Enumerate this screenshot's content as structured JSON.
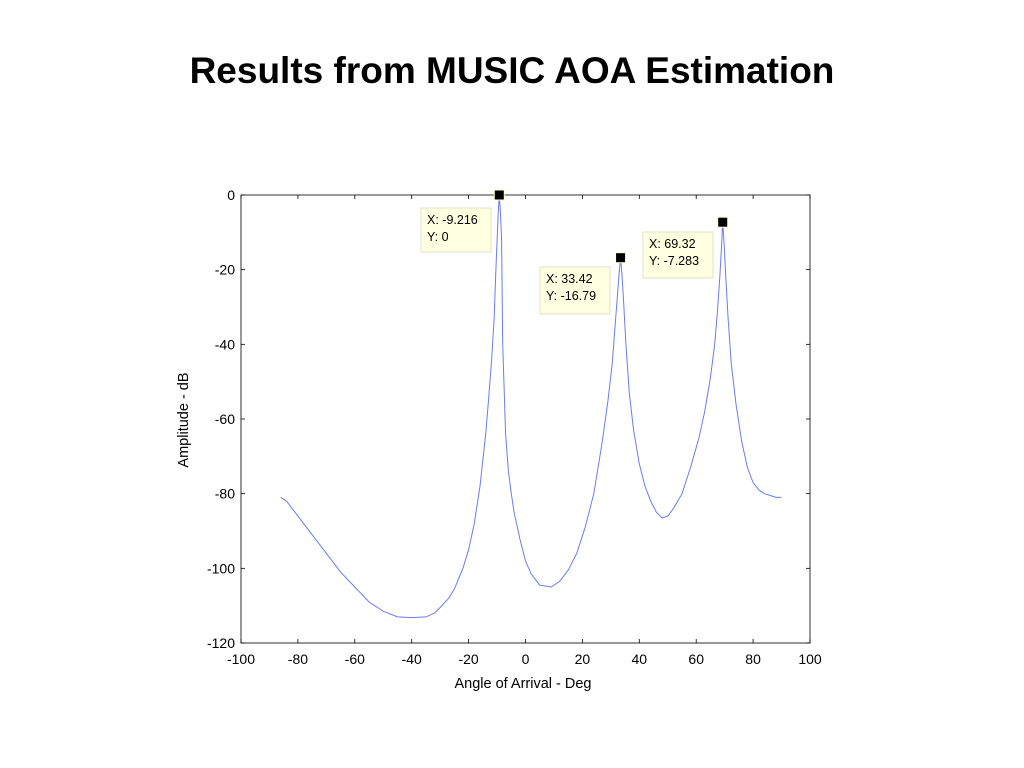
{
  "slide": {
    "title": "Results from MUSIC AOA Estimation"
  },
  "chart_data": {
    "type": "line",
    "title": "",
    "xlabel": "Angle of Arrival - Deg",
    "ylabel": "Amplitude - dB",
    "xlim": [
      -100,
      100
    ],
    "ylim": [
      -120,
      0
    ],
    "xticks": [
      -100,
      -80,
      -60,
      -40,
      -20,
      0,
      20,
      40,
      60,
      80,
      100
    ],
    "yticks": [
      0,
      -20,
      -40,
      -60,
      -80,
      -100,
      -120
    ],
    "grid": false,
    "legend": "none",
    "series": [
      {
        "color": "#6b7cf0",
        "x": [
          -86,
          -84,
          -82,
          -80,
          -75,
          -70,
          -65,
          -60,
          -55,
          -50,
          -45,
          -40,
          -35,
          -32,
          -30,
          -27,
          -25,
          -22,
          -20,
          -18,
          -16,
          -14,
          -13,
          -12,
          -11,
          -10.5,
          -10,
          -9.6,
          -9.216,
          -8.8,
          -8.4,
          -8,
          -7,
          -6,
          -5,
          -4,
          -2,
          0,
          2,
          5,
          9,
          12,
          15,
          18,
          21,
          24,
          27,
          29,
          30.5,
          31.5,
          32.3,
          32.9,
          33.42,
          33.9,
          34.5,
          35.3,
          36.5,
          38,
          40,
          42,
          44,
          46,
          48,
          50,
          52,
          55,
          58,
          61,
          63,
          65,
          66.5,
          67.5,
          68.3,
          68.9,
          69.32,
          69.8,
          70.4,
          71.2,
          72.3,
          74,
          76,
          78,
          80,
          82,
          84,
          86,
          88,
          90
        ],
        "y": [
          -81,
          -82,
          -84,
          -86,
          -91,
          -96,
          -101,
          -105,
          -109,
          -111.5,
          -113,
          -113.2,
          -113,
          -112,
          -110.5,
          -108,
          -105.5,
          -100,
          -95,
          -88,
          -78,
          -64,
          -55,
          -45,
          -33,
          -22,
          -12,
          -5,
          0,
          -5,
          -12,
          -40,
          -64,
          -74,
          -80,
          -85,
          -92,
          -98,
          -101.5,
          -104.5,
          -105,
          -103.5,
          -100.5,
          -96,
          -89,
          -80,
          -66,
          -55,
          -45,
          -35,
          -27,
          -21,
          -16.79,
          -21,
          -29,
          -40,
          -53,
          -63,
          -72,
          -78,
          -82,
          -85,
          -86.5,
          -86,
          -84,
          -80,
          -73,
          -65,
          -58,
          -49,
          -40,
          -31,
          -22,
          -14,
          -7.283,
          -13,
          -22,
          -33,
          -45,
          -56,
          -66,
          -73,
          -77,
          -79,
          -80,
          -80.5,
          -81,
          -81
        ]
      }
    ],
    "datatips": [
      {
        "x": -9.216,
        "y": 0,
        "x_text": "X: -9.216",
        "y_text": "Y: 0"
      },
      {
        "x": 33.42,
        "y": -16.79,
        "x_text": "X: 33.42",
        "y_text": "Y: -16.79"
      },
      {
        "x": 69.32,
        "y": -7.283,
        "x_text": "X: 69.32",
        "y_text": "Y: -7.283"
      }
    ]
  }
}
